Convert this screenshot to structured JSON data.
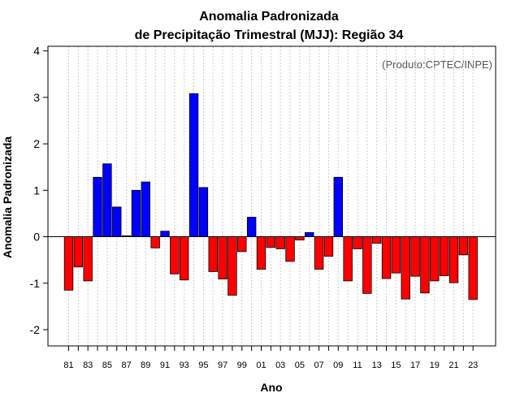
{
  "chart_data": {
    "type": "bar",
    "title": "Anomalia Padronizada",
    "subtitle": "de Precipitação Trimestral (MJJ): Região 34",
    "xlabel": "Ano",
    "ylabel": "Anomalia Padronizada",
    "credit": "(Produto:CPTEC/INPE)",
    "ylim": [
      -2.35,
      4.1
    ],
    "yticks": [
      -2,
      -1,
      0,
      1,
      2,
      3,
      4
    ],
    "xtick_labels": [
      "81",
      "83",
      "85",
      "87",
      "89",
      "91",
      "93",
      "95",
      "97",
      "99",
      "01",
      "03",
      "05",
      "07",
      "09",
      "11",
      "13",
      "15",
      "17",
      "19",
      "21",
      "23"
    ],
    "categories": [
      "1981",
      "1982",
      "1983",
      "1984",
      "1985",
      "1986",
      "1987",
      "1988",
      "1989",
      "1990",
      "1991",
      "1992",
      "1993",
      "1994",
      "1995",
      "1996",
      "1997",
      "1998",
      "1999",
      "2000",
      "2001",
      "2002",
      "2003",
      "2004",
      "2005",
      "2006",
      "2007",
      "2008",
      "2009",
      "2010",
      "2011",
      "2012",
      "2013",
      "2014",
      "2015",
      "2016",
      "2017",
      "2018",
      "2019",
      "2020",
      "2021",
      "2022",
      "2023"
    ],
    "values": [
      -1.15,
      -0.65,
      -0.95,
      1.28,
      1.57,
      0.64,
      0.02,
      1.0,
      1.18,
      -0.24,
      0.12,
      -0.8,
      -0.93,
      3.08,
      1.06,
      -0.75,
      -0.91,
      -1.26,
      -0.32,
      0.42,
      -0.7,
      -0.23,
      -0.26,
      -0.53,
      -0.07,
      0.09,
      -0.7,
      -0.42,
      1.28,
      -0.95,
      -0.26,
      -1.22,
      -0.14,
      -0.9,
      -0.78,
      -1.34,
      -0.85,
      -1.21,
      -0.95,
      -0.84,
      -0.99,
      -0.39,
      -1.35
    ],
    "colors": {
      "positive": "#0000ff",
      "negative": "#ff0000",
      "grid": "#cccccc"
    }
  }
}
